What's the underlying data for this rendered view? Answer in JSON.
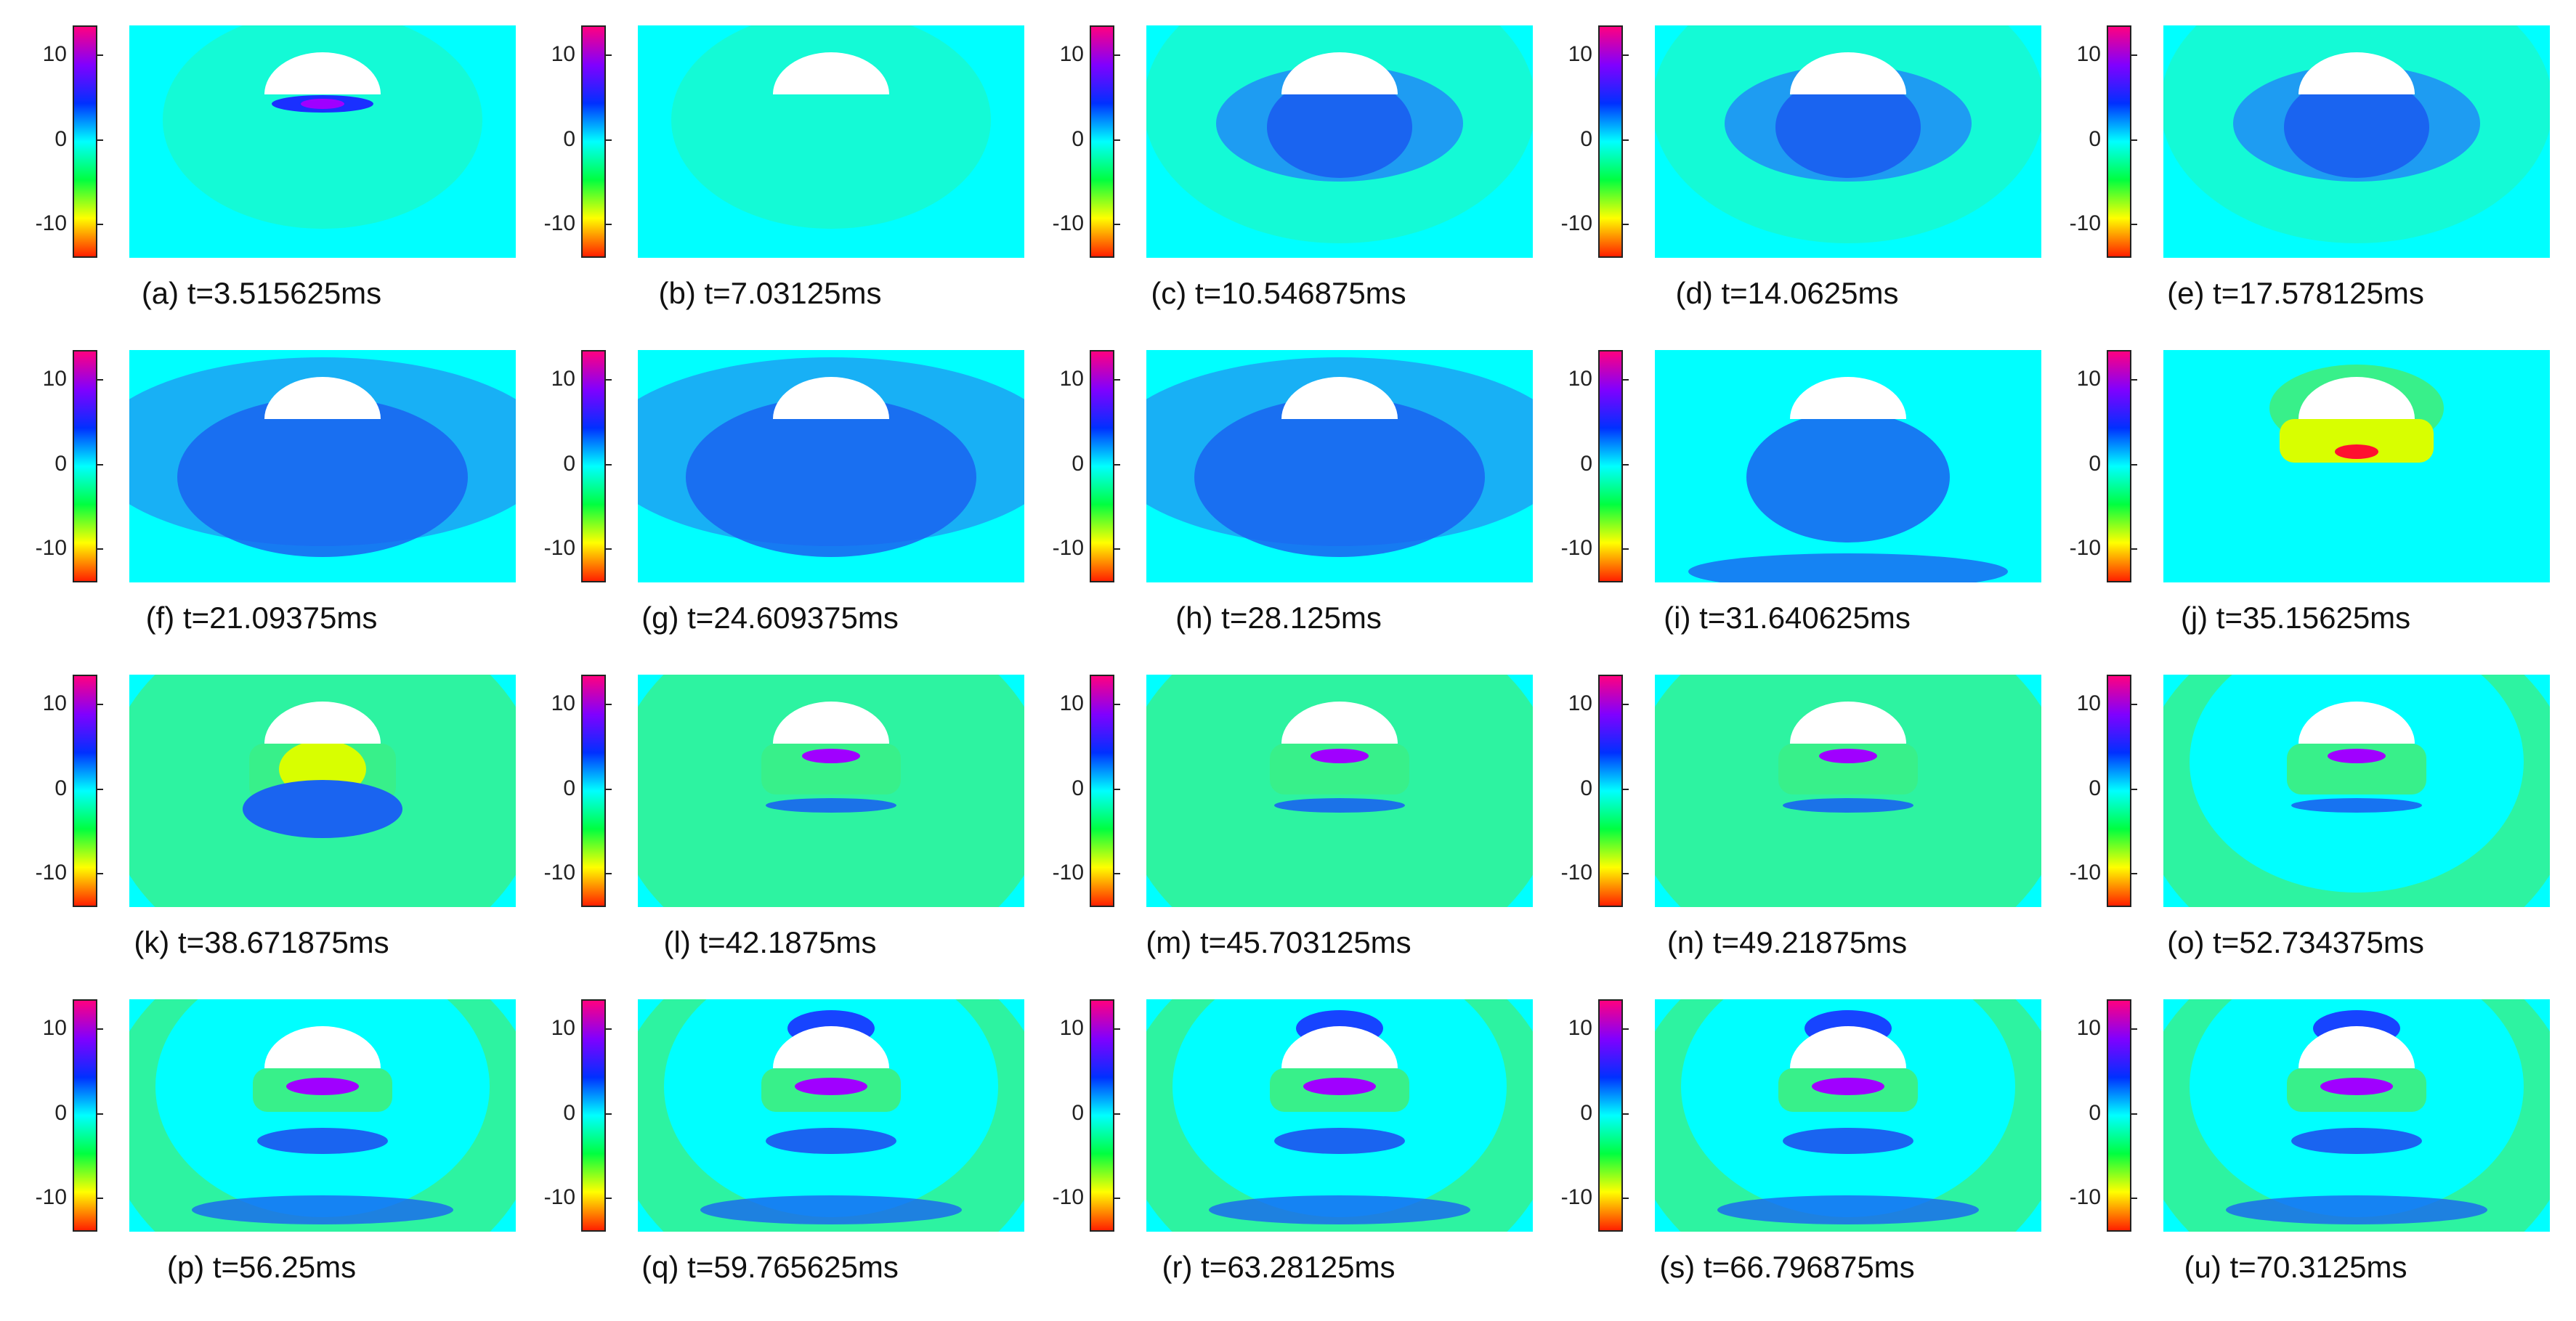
{
  "colorbar": {
    "ticks": [
      "10",
      "0",
      "-10"
    ],
    "colors": [
      "#ff0080",
      "#8000ff",
      "#0030ff",
      "#00ffff",
      "#00ff40",
      "#ffff00",
      "#ff2000"
    ]
  },
  "field_colors": {
    "background": "#00ffff",
    "green": "#38f08a",
    "light_blue": "#1e9cf2",
    "blue": "#1a64f0",
    "deep_blue": "#1a30ff",
    "purple": "#a000ff",
    "yellow": "#d8ff00",
    "orange": "#ff9000",
    "red": "#ff1030",
    "object": "#ffffff"
  },
  "panels": [
    {
      "caption": "(a) t=3.515625ms"
    },
    {
      "caption": "(b) t=7.03125ms"
    },
    {
      "caption": "(c) t=10.546875ms"
    },
    {
      "caption": "(d) t=14.0625ms"
    },
    {
      "caption": "(e) t=17.578125ms"
    },
    {
      "caption": "(f) t=21.09375ms"
    },
    {
      "caption": "(g) t=24.609375ms"
    },
    {
      "caption": "(h) t=28.125ms"
    },
    {
      "caption": "(i) t=31.640625ms"
    },
    {
      "caption": "(j) t=35.15625ms"
    },
    {
      "caption": "(k) t=38.671875ms"
    },
    {
      "caption": "(l) t=42.1875ms"
    },
    {
      "caption": "(m) t=45.703125ms"
    },
    {
      "caption": "(n) t=49.21875ms"
    },
    {
      "caption": "(o) t=52.734375ms"
    },
    {
      "caption": "(p) t=56.25ms"
    },
    {
      "caption": "(q) t=59.765625ms"
    },
    {
      "caption": "(r) t=63.28125ms"
    },
    {
      "caption": "(s) t=66.796875ms"
    },
    {
      "caption": "(u) t=70.3125ms"
    }
  ]
}
